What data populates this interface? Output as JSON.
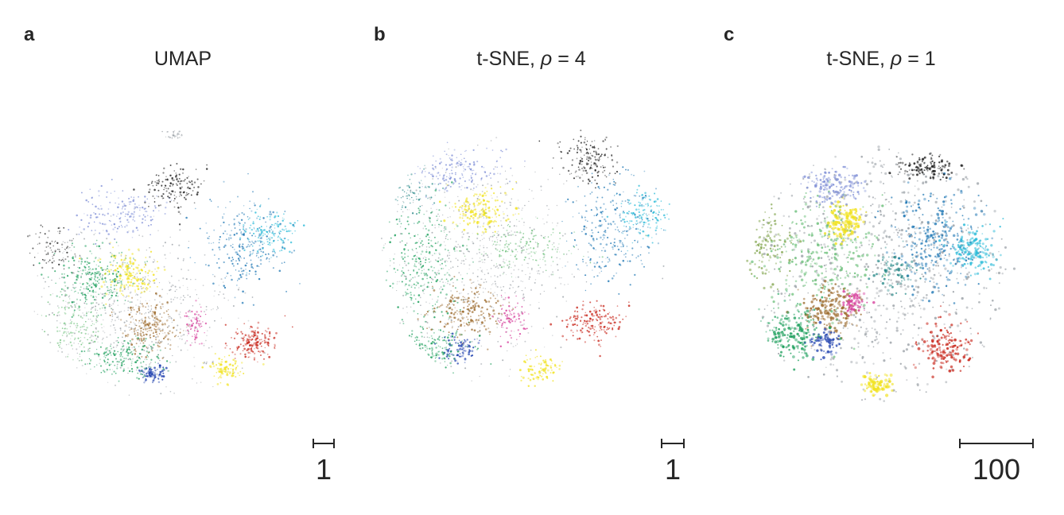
{
  "panels": [
    {
      "letter": "a",
      "title": "UMAP",
      "title_symbol": "",
      "title_value": "",
      "scale_label": "1"
    },
    {
      "letter": "b",
      "title": "t-SNE, ",
      "title_symbol": "ρ",
      "title_value": " = 4",
      "scale_label": "1"
    },
    {
      "letter": "c",
      "title": "t-SNE, ",
      "title_symbol": "ρ",
      "title_value": " = 1",
      "scale_label": "100"
    }
  ],
  "chart_data": [
    {
      "type": "scatter",
      "title": "UMAP",
      "xlabel": "",
      "ylabel": "",
      "axes_visible": false,
      "grid": false,
      "legend": "none",
      "scale_bar": 1
    },
    {
      "type": "scatter",
      "title": "t-SNE, ρ = 4",
      "xlabel": "",
      "ylabel": "",
      "axes_visible": false,
      "grid": false,
      "legend": "none",
      "scale_bar": 1
    },
    {
      "type": "scatter",
      "title": "t-SNE, ρ = 1",
      "xlabel": "",
      "ylabel": "",
      "axes_visible": false,
      "grid": false,
      "legend": "none",
      "scale_bar": 100
    }
  ],
  "palette": {
    "green": "#1a9e5a",
    "lightgreen": "#6cbf7a",
    "yellow": "#f1e21d",
    "blue": "#1f77b4",
    "cyan": "#2bbbd8",
    "navy": "#1d3fae",
    "periwinkle": "#7f8fd6",
    "brown": "#9c6a2c",
    "red": "#c8271c",
    "magenta": "#d63a9a",
    "black": "#1a1a1a",
    "gray": "#9aa0a6",
    "olive": "#7fa34a",
    "teal": "#2a8a8a"
  }
}
